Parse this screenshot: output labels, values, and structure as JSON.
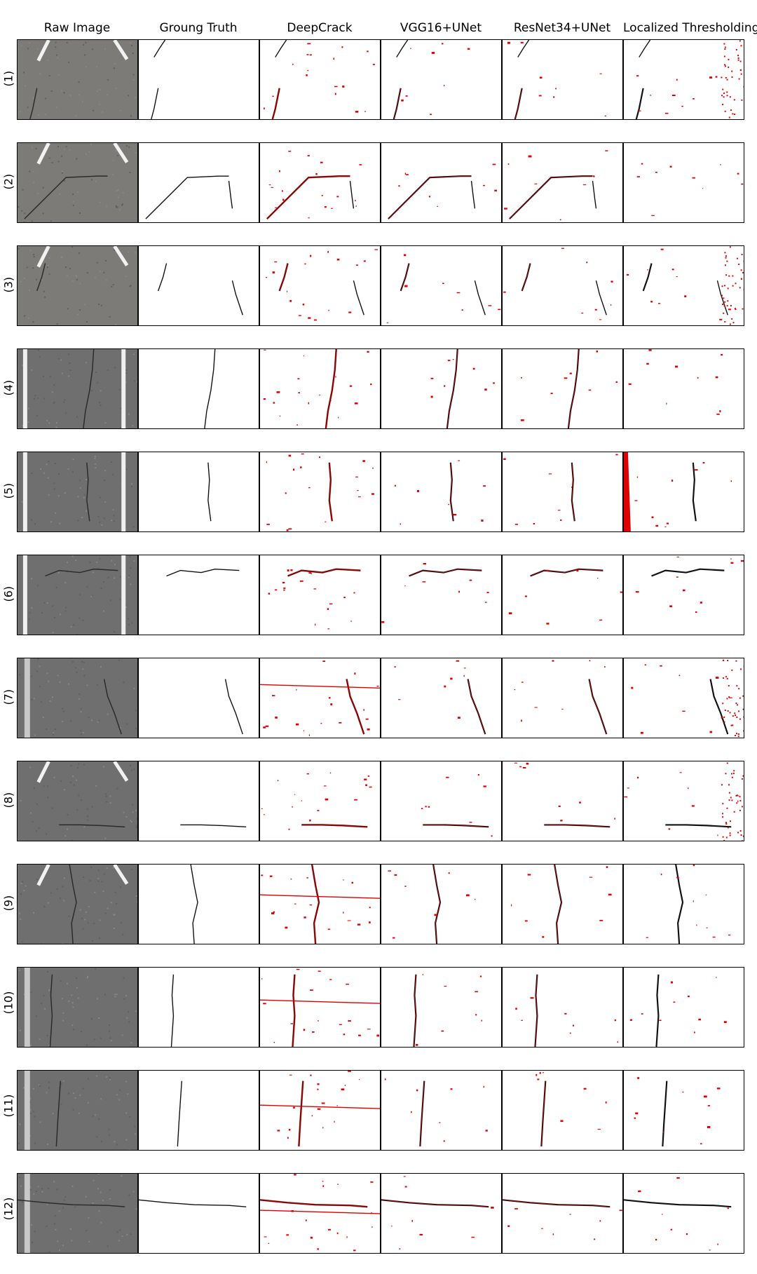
{
  "columns": [
    "Raw Image",
    "Groung Truth",
    "DeepCrack",
    "VGG16+UNet",
    "ResNet34+UNet",
    "Localized Thresholding"
  ],
  "rows": [
    "(1)",
    "(2)",
    "(3)",
    "(4)",
    "(5)",
    "(6)",
    "(7)",
    "(8)",
    "(9)",
    "(10)",
    "(11)",
    "(12)"
  ],
  "colors": {
    "crack": "#111111",
    "false_positive": "#e00000",
    "asphalt": "#7a7a7a"
  }
}
